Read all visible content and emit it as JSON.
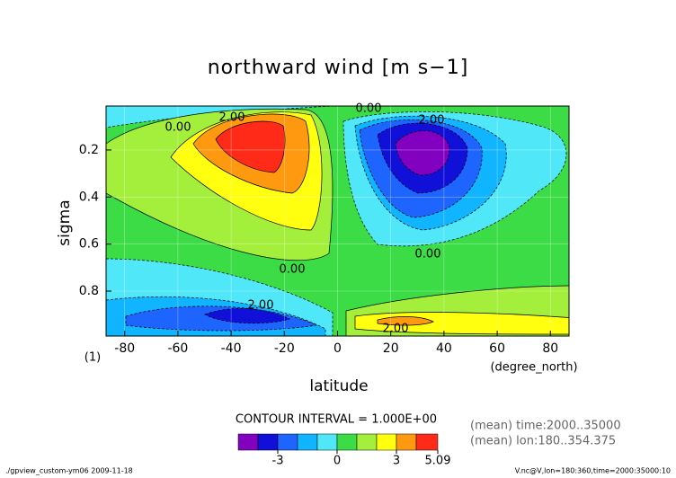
{
  "chart_data": {
    "type": "contour",
    "title": "northward wind [m s−1]",
    "x_label": "latitude",
    "x_unit_label": "(degree_north)",
    "y_label": "sigma",
    "y_unit_label": "(1)",
    "xlim": [
      -87,
      87
    ],
    "xticks": [
      -80,
      -60,
      -40,
      -20,
      0,
      20,
      40,
      60,
      80
    ],
    "ylim": [
      0.013,
      0.991
    ],
    "y_inverted": true,
    "yticks": [
      0.2,
      0.4,
      0.6,
      0.8
    ],
    "grid": true,
    "contour_labels": [
      "0.00",
      "2.00",
      "0.00",
      "2.00",
      "0.00",
      "0.00",
      "2.00",
      "2.00"
    ],
    "contour_interval_label": "CONTOUR INTERVAL = 1.000E+00",
    "levels": [
      -5,
      -4,
      -3,
      -2,
      -1,
      0,
      1,
      2,
      3,
      4,
      5.09
    ],
    "level_colors": [
      "#8200c0",
      "#1010d8",
      "#1e64ff",
      "#10b4ff",
      "#50e8f8",
      "#3cdc46",
      "#a4ee3c",
      "#ffff10",
      "#ff9a10",
      "#ff2a18"
    ],
    "colorbar_ticks": [
      -3,
      0,
      3,
      5.09
    ],
    "notes": [
      "(mean) time:2000..35000",
      "(mean) lon:180..354.375"
    ],
    "footer_left": "./gpview_custom-ym06  2009-11-18",
    "footer_right": "V.nc@V,lon=180:360,time=2000:35000:10"
  }
}
